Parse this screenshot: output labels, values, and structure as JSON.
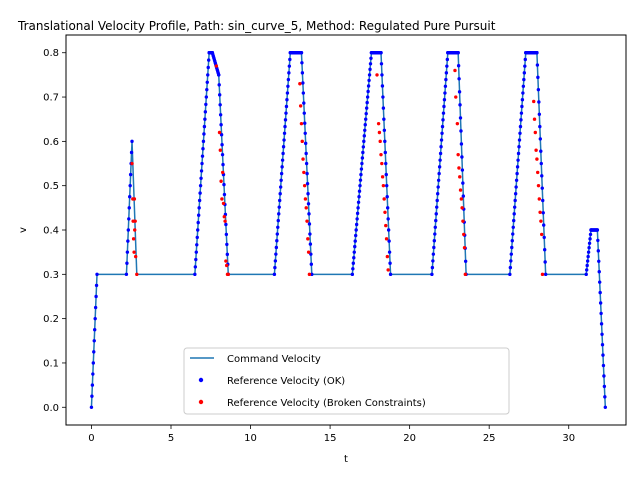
{
  "chart_data": {
    "type": "line",
    "title": "Translational Velocity Profile, Path: sin_curve_5, Method: Regulated Pure Pursuit",
    "xlabel": "t",
    "ylabel": "v",
    "xlim": [
      -1.6,
      33.6
    ],
    "ylim": [
      -0.04,
      0.84
    ],
    "xticks": [
      0,
      5,
      10,
      15,
      20,
      25,
      30
    ],
    "yticks": [
      0.0,
      0.1,
      0.2,
      0.3,
      0.4,
      0.5,
      0.6,
      0.7,
      0.8
    ],
    "grid": false,
    "legend_position": "bottom-center",
    "colors": {
      "command": "#1f77b4",
      "ok": "#0000ff",
      "broken": "#ff0000"
    },
    "series": [
      {
        "name": "Command Velocity",
        "kind": "line",
        "x": [
          0.0,
          0.35,
          2.2,
          2.55,
          2.85,
          6.5,
          7.4,
          7.6,
          8.0,
          8.6,
          11.5,
          12.5,
          13.2,
          13.85,
          16.4,
          17.6,
          18.2,
          18.8,
          21.4,
          22.4,
          23.05,
          23.55,
          26.3,
          27.3,
          28.0,
          28.55,
          31.1,
          31.4,
          31.8,
          32.3
        ],
        "y": [
          0.0,
          0.3,
          0.3,
          0.6,
          0.3,
          0.3,
          0.8,
          0.8,
          0.75,
          0.3,
          0.3,
          0.8,
          0.8,
          0.3,
          0.3,
          0.8,
          0.8,
          0.3,
          0.3,
          0.8,
          0.8,
          0.3,
          0.3,
          0.8,
          0.8,
          0.3,
          0.3,
          0.4,
          0.4,
          0.0
        ]
      },
      {
        "name": "Reference Velocity (OK)",
        "kind": "scatter",
        "segments": [
          {
            "x": [
              0.0,
              0.35
            ],
            "y": [
              0.0,
              0.3
            ]
          },
          {
            "x": [
              2.2,
              2.55
            ],
            "y": [
              0.3,
              0.6
            ]
          },
          {
            "x": [
              6.5,
              7.4
            ],
            "y": [
              0.3,
              0.8
            ]
          },
          {
            "x": [
              7.4,
              7.6
            ],
            "y": [
              0.8,
              0.8
            ]
          },
          {
            "x": [
              7.6,
              8.0
            ],
            "y": [
              0.8,
              0.75
            ]
          },
          {
            "x": [
              8.0,
              8.6
            ],
            "y": [
              0.75,
              0.3
            ]
          },
          {
            "x": [
              11.5,
              12.5
            ],
            "y": [
              0.3,
              0.8
            ]
          },
          {
            "x": [
              12.5,
              13.2
            ],
            "y": [
              0.8,
              0.8
            ]
          },
          {
            "x": [
              13.2,
              13.85
            ],
            "y": [
              0.8,
              0.3
            ]
          },
          {
            "x": [
              16.4,
              17.6
            ],
            "y": [
              0.3,
              0.8
            ]
          },
          {
            "x": [
              17.6,
              18.2
            ],
            "y": [
              0.8,
              0.8
            ]
          },
          {
            "x": [
              18.2,
              18.8
            ],
            "y": [
              0.8,
              0.3
            ]
          },
          {
            "x": [
              21.4,
              22.4
            ],
            "y": [
              0.3,
              0.8
            ]
          },
          {
            "x": [
              22.4,
              23.05
            ],
            "y": [
              0.8,
              0.8
            ]
          },
          {
            "x": [
              23.05,
              23.55
            ],
            "y": [
              0.8,
              0.3
            ]
          },
          {
            "x": [
              26.3,
              27.3
            ],
            "y": [
              0.3,
              0.8
            ]
          },
          {
            "x": [
              27.3,
              28.0
            ],
            "y": [
              0.8,
              0.8
            ]
          },
          {
            "x": [
              28.0,
              28.55
            ],
            "y": [
              0.8,
              0.3
            ]
          },
          {
            "x": [
              31.1,
              31.4
            ],
            "y": [
              0.3,
              0.4
            ]
          },
          {
            "x": [
              31.4,
              31.8
            ],
            "y": [
              0.4,
              0.4
            ]
          },
          {
            "x": [
              31.8,
              32.3
            ],
            "y": [
              0.4,
              0.0
            ]
          }
        ]
      },
      {
        "name": "Reference Velocity (Broken Constraints)",
        "kind": "scatter",
        "x": [
          2.55,
          2.6,
          2.62,
          2.65,
          2.68,
          2.7,
          2.72,
          2.75,
          2.78,
          2.85,
          7.85,
          8.05,
          8.1,
          8.15,
          8.2,
          8.25,
          8.3,
          8.35,
          8.4,
          8.45,
          8.5,
          8.55,
          8.6,
          13.1,
          13.15,
          13.2,
          13.25,
          13.3,
          13.35,
          13.4,
          13.45,
          13.5,
          13.55,
          13.6,
          13.65,
          13.7,
          17.95,
          18.05,
          18.1,
          18.15,
          18.2,
          18.25,
          18.3,
          18.35,
          18.4,
          18.45,
          18.5,
          18.55,
          18.6,
          18.65,
          22.85,
          22.9,
          23.0,
          23.05,
          23.1,
          23.15,
          23.2,
          23.25,
          23.3,
          23.35,
          23.4,
          23.45,
          23.5,
          27.8,
          27.85,
          27.9,
          27.95,
          28.0,
          28.05,
          28.1,
          28.15,
          28.2,
          28.25,
          28.3,
          28.35
        ],
        "y": [
          0.55,
          0.47,
          0.42,
          0.38,
          0.35,
          0.47,
          0.4,
          0.42,
          0.34,
          0.3,
          0.77,
          0.62,
          0.58,
          0.51,
          0.47,
          0.53,
          0.46,
          0.43,
          0.42,
          0.33,
          0.32,
          0.3,
          0.3,
          0.73,
          0.68,
          0.64,
          0.6,
          0.56,
          0.53,
          0.5,
          0.47,
          0.45,
          0.42,
          0.38,
          0.35,
          0.3,
          0.75,
          0.64,
          0.62,
          0.6,
          0.57,
          0.55,
          0.52,
          0.5,
          0.47,
          0.44,
          0.41,
          0.38,
          0.34,
          0.31,
          0.76,
          0.7,
          0.64,
          0.57,
          0.54,
          0.52,
          0.49,
          0.47,
          0.45,
          0.42,
          0.39,
          0.36,
          0.3,
          0.69,
          0.65,
          0.62,
          0.58,
          0.56,
          0.53,
          0.5,
          0.47,
          0.44,
          0.42,
          0.39,
          0.3
        ]
      }
    ]
  }
}
